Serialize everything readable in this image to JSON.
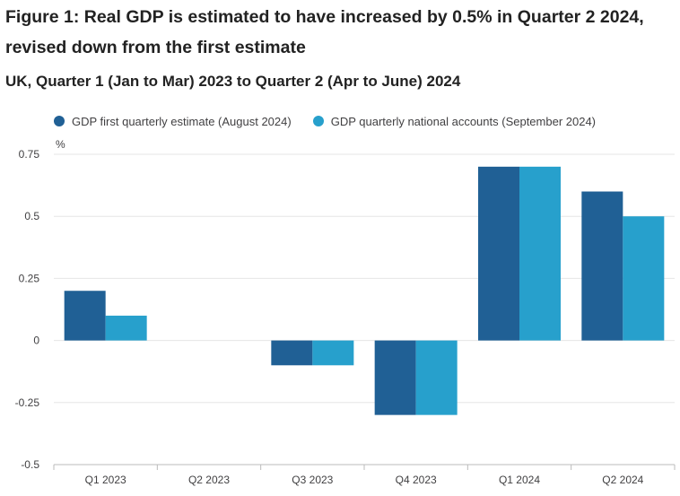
{
  "title": "Figure 1: Real GDP is estimated to have increased by 0.5% in Quarter 2 2024, revised down from the first estimate",
  "subtitle": "UK, Quarter 1 (Jan to Mar) 2023 to Quarter 2 (Apr to June) 2024",
  "colors": {
    "series1": "#206095",
    "series2": "#27a0cc",
    "grid": "#e6e6e6",
    "axis": "#bbbbbb",
    "text": "#414042"
  },
  "chart_data": {
    "type": "bar",
    "title": "Figure 1: Real GDP is estimated to have increased by 0.5% in Quarter 2 2024, revised down from the first estimate",
    "subtitle": "UK, Quarter 1 (Jan to Mar) 2023 to Quarter 2 (Apr to June) 2024",
    "ylabel": "%",
    "xlabel": "",
    "categories": [
      "Q1 2023",
      "Q2 2023",
      "Q3 2023",
      "Q4 2023",
      "Q1 2024",
      "Q2 2024"
    ],
    "series": [
      {
        "name": "GDP first quarterly estimate (August 2024)",
        "color": "#206095",
        "values": [
          0.2,
          0.0,
          -0.1,
          -0.3,
          0.7,
          0.6
        ]
      },
      {
        "name": "GDP quarterly national accounts (September 2024)",
        "color": "#27a0cc",
        "values": [
          0.1,
          0.0,
          -0.1,
          -0.3,
          0.7,
          0.5
        ]
      }
    ],
    "ylim": [
      -0.5,
      0.75
    ],
    "yticks": [
      0.75,
      0.5,
      0.25,
      0,
      -0.25,
      -0.5
    ],
    "ytick_labels": [
      "0.75",
      "0.5",
      "0.25",
      "0",
      "-0.25",
      "-0.5"
    ],
    "grid": true,
    "legend_position": "top-left"
  }
}
